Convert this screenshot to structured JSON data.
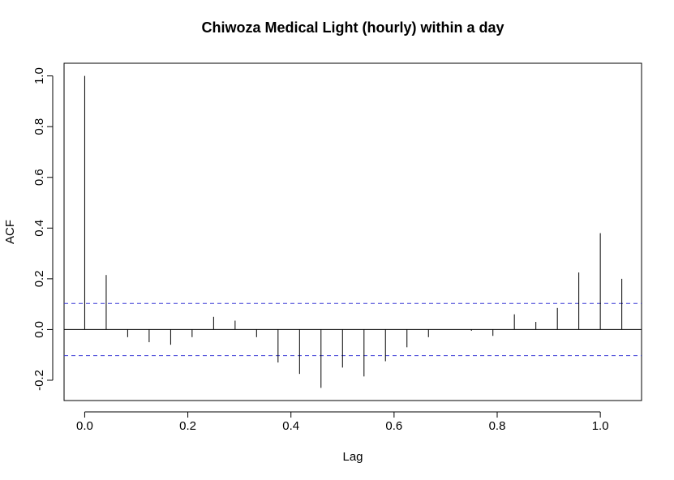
{
  "chart_data": {
    "type": "bar",
    "subtype": "acf-correlogram",
    "title": "Chiwoza Medical Light (hourly) within a day",
    "xlabel": "Lag",
    "ylabel": "ACF",
    "xlim": [
      -0.04,
      1.08
    ],
    "ylim": [
      -0.28,
      1.05
    ],
    "x_ticks": [
      0.0,
      0.2,
      0.4,
      0.6,
      0.8,
      1.0
    ],
    "x_tick_labels": [
      "0.0",
      "0.2",
      "0.4",
      "0.6",
      "0.8",
      "1.0"
    ],
    "y_ticks": [
      -0.2,
      0.0,
      0.2,
      0.4,
      0.6,
      0.8,
      1.0
    ],
    "y_tick_labels": [
      "-0.2",
      "0.0",
      "0.2",
      "0.4",
      "0.6",
      "0.8",
      "1.0"
    ],
    "confidence_band": 0.103,
    "confidence_color": "#3b3bd6",
    "line_color": "#000000",
    "grid": false,
    "x": [
      0.0,
      0.0417,
      0.0833,
      0.125,
      0.1667,
      0.2083,
      0.25,
      0.2917,
      0.3333,
      0.375,
      0.4167,
      0.4583,
      0.5,
      0.5417,
      0.5833,
      0.625,
      0.6667,
      0.7083,
      0.75,
      0.7917,
      0.8333,
      0.875,
      0.9167,
      0.9583,
      1.0,
      1.0417
    ],
    "values": [
      1.0,
      0.215,
      -0.03,
      -0.05,
      -0.06,
      -0.03,
      0.05,
      0.035,
      -0.03,
      -0.13,
      -0.175,
      -0.23,
      -0.15,
      -0.185,
      -0.125,
      -0.07,
      -0.03,
      0.0,
      -0.005,
      -0.025,
      0.06,
      0.03,
      0.085,
      0.225,
      0.38,
      0.2
    ]
  }
}
